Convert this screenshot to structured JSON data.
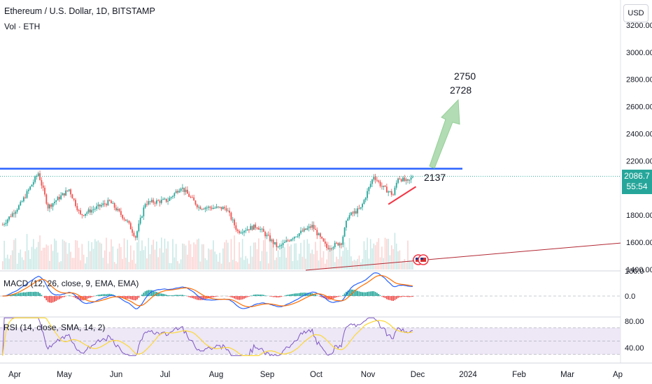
{
  "header": {
    "title": "Ethereum / U.S. Dollar, 1D, BITSTAMP",
    "volume_label": "Vol · ETH",
    "currency_button": "USD"
  },
  "price_badge": {
    "price": "2086.7",
    "countdown": "55:54"
  },
  "annotations": {
    "target_high": "2750",
    "target_low": "2728",
    "resistance_label": "2137"
  },
  "indicators": {
    "macd_label": "MACD (12, 26, close, 9, EMA, EMA)",
    "rsi_label": "RSI (14, close, SMA, 14, 2)"
  },
  "colors": {
    "up": "#26a69a",
    "down": "#ef5350",
    "resistance": "#2962ff",
    "trendline": "#b22833",
    "support_wedge": "#f23645",
    "target_arrow": "#a5d6a7",
    "macd_line": "#2962ff",
    "signal_line": "#ff6d00",
    "rsi_line": "#7e57c2",
    "rsi_ma": "#fdd835",
    "rsi_band": "#ede7f6"
  },
  "chart_data": {
    "type": "candlestick",
    "symbol": "Ethereum / U.S. Dollar",
    "interval": "1D",
    "exchange": "BITSTAMP",
    "x_tick_labels": [
      "Apr",
      "May",
      "Jun",
      "Jul",
      "Aug",
      "Sep",
      "Oct",
      "Nov",
      "Dec",
      "2024",
      "Feb",
      "Mar",
      "Ap"
    ],
    "price_axis": {
      "ticks": [
        1400,
        1600,
        1800,
        2000,
        2200,
        2400,
        2600,
        2800,
        3000,
        3200
      ],
      "last_price": 2086.7
    },
    "price_waypoints": [
      {
        "date": "2023-03-25",
        "close": 1730
      },
      {
        "date": "2023-04-05",
        "close": 1880
      },
      {
        "date": "2023-04-16",
        "close": 2110
      },
      {
        "date": "2023-04-22",
        "close": 1860
      },
      {
        "date": "2023-05-05",
        "close": 1990
      },
      {
        "date": "2023-05-12",
        "close": 1800
      },
      {
        "date": "2023-05-30",
        "close": 1900
      },
      {
        "date": "2023-06-10",
        "close": 1750
      },
      {
        "date": "2023-06-15",
        "close": 1640
      },
      {
        "date": "2023-06-21",
        "close": 1890
      },
      {
        "date": "2023-07-05",
        "close": 1910
      },
      {
        "date": "2023-07-13",
        "close": 2010
      },
      {
        "date": "2023-07-24",
        "close": 1860
      },
      {
        "date": "2023-08-10",
        "close": 1850
      },
      {
        "date": "2023-08-17",
        "close": 1680
      },
      {
        "date": "2023-08-29",
        "close": 1720
      },
      {
        "date": "2023-09-11",
        "close": 1560
      },
      {
        "date": "2023-09-20",
        "close": 1640
      },
      {
        "date": "2023-10-02",
        "close": 1720
      },
      {
        "date": "2023-10-11",
        "close": 1560
      },
      {
        "date": "2023-10-20",
        "close": 1600
      },
      {
        "date": "2023-10-24",
        "close": 1790
      },
      {
        "date": "2023-11-01",
        "close": 1850
      },
      {
        "date": "2023-11-09",
        "close": 2090
      },
      {
        "date": "2023-11-14",
        "close": 2010
      },
      {
        "date": "2023-11-21",
        "close": 1950
      },
      {
        "date": "2023-11-24",
        "close": 2080
      },
      {
        "date": "2023-11-30",
        "close": 2040
      },
      {
        "date": "2023-12-03",
        "close": 2087
      }
    ],
    "drawings": {
      "resistance_line": {
        "price": 2137,
        "from": "2023-03-25",
        "to": "2023-12-30"
      },
      "target_arrow": {
        "from_date": "2023-12-04",
        "from_price": 2137,
        "to_date": "2023-12-28",
        "to_price": 2650
      },
      "long_trendline": {
        "from_date": "2023-09-28",
        "from_price": 1395,
        "to_date": "2024-04-01",
        "to_price": 1595
      },
      "wedge_support": {
        "from_date": "2023-11-18",
        "from_price": 1880,
        "to_date": "2023-12-05",
        "to_price": 2010
      }
    },
    "macd": {
      "axis_ticks": [
        100.0,
        0.0
      ],
      "params": "12, 26, close, 9, EMA, EMA"
    },
    "rsi": {
      "axis_ticks": [
        80.0,
        40.0
      ],
      "band": [
        70,
        30
      ],
      "params": "14, close, SMA, 14, 2"
    }
  }
}
